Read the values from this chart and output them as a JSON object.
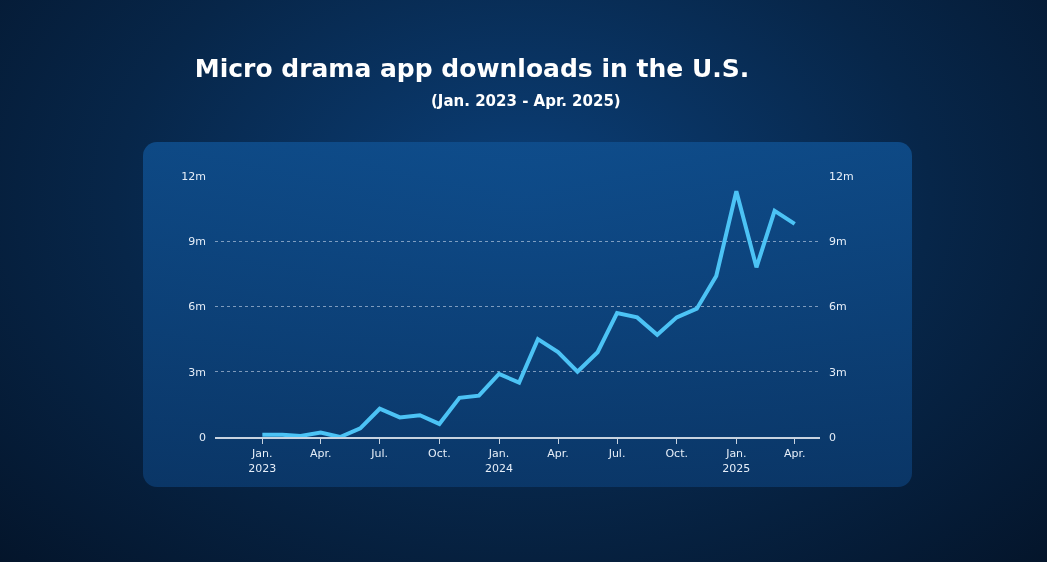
{
  "chart_data": {
    "type": "line",
    "title": "Micro drama app downloads in the U.S.",
    "subtitle": "(Jan. 2023 - Apr. 2025)",
    "x": [
      "2023-01",
      "2023-02",
      "2023-03",
      "2023-04",
      "2023-05",
      "2023-06",
      "2023-07",
      "2023-08",
      "2023-09",
      "2023-10",
      "2023-11",
      "2023-12",
      "2024-01",
      "2024-02",
      "2024-03",
      "2024-04",
      "2024-05",
      "2024-06",
      "2024-07",
      "2024-08",
      "2024-09",
      "2024-10",
      "2024-11",
      "2024-12",
      "2025-01",
      "2025-02",
      "2025-03",
      "2025-04"
    ],
    "values": [
      0.1,
      0.1,
      0.05,
      0.2,
      0.0,
      0.4,
      1.3,
      0.9,
      1.0,
      0.6,
      1.8,
      1.9,
      2.9,
      2.5,
      4.5,
      3.9,
      3.0,
      3.9,
      5.7,
      5.5,
      4.7,
      5.5,
      5.9,
      7.4,
      11.3,
      7.8,
      10.4,
      9.8
    ],
    "color": "#4cc3f5",
    "xlim": [
      "2022-10-20",
      "2025-05-10"
    ],
    "xticks": [
      {
        "value": "2023-01",
        "label": "Jan.\n2023"
      },
      {
        "value": "2023-04",
        "label": "Apr."
      },
      {
        "value": "2023-07",
        "label": "Jul."
      },
      {
        "value": "2023-10",
        "label": "Oct."
      },
      {
        "value": "2024-01",
        "label": "Jan.\n2024"
      },
      {
        "value": "2024-04",
        "label": "Apr."
      },
      {
        "value": "2024-07",
        "label": "Jul."
      },
      {
        "value": "2024-10",
        "label": "Oct."
      },
      {
        "value": "2025-01",
        "label": "Jan.\n2025"
      },
      {
        "value": "2025-04",
        "label": "Apr."
      }
    ],
    "ylim": [
      0,
      12
    ],
    "yticks": [
      0,
      {
        "value": 3,
        "label": "3m"
      },
      {
        "value": 6,
        "label": "6m"
      },
      {
        "value": 9,
        "label": "9m"
      },
      {
        "value": 12,
        "label": "12m"
      }
    ],
    "y2lim": [
      0,
      12
    ],
    "y2ticks": [
      0,
      {
        "value": 3,
        "label": "3m"
      },
      {
        "value": 6,
        "label": "6m"
      },
      {
        "value": 9,
        "label": "9m"
      },
      {
        "value": 12,
        "label": "12m"
      }
    ],
    "grid": "y",
    "legend": false,
    "marker": "none",
    "line_style": "solid"
  }
}
